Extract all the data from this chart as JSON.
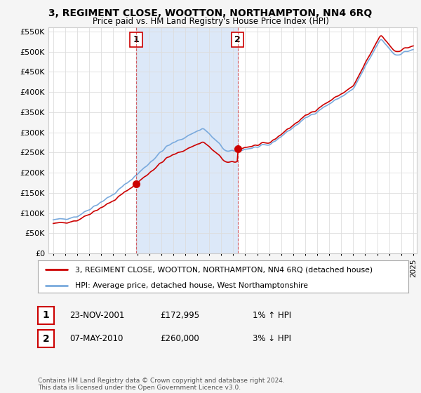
{
  "title": "3, REGIMENT CLOSE, WOOTTON, NORTHAMPTON, NN4 6RQ",
  "subtitle": "Price paid vs. HM Land Registry's House Price Index (HPI)",
  "legend_line1": "3, REGIMENT CLOSE, WOOTTON, NORTHAMPTON, NN4 6RQ (detached house)",
  "legend_line2": "HPI: Average price, detached house, West Northamptonshire",
  "sale1_date": "23-NOV-2001",
  "sale1_price": "£172,995",
  "sale1_hpi": "1% ↑ HPI",
  "sale2_date": "07-MAY-2010",
  "sale2_price": "£260,000",
  "sale2_hpi": "3% ↓ HPI",
  "footer": "Contains HM Land Registry data © Crown copyright and database right 2024.\nThis data is licensed under the Open Government Licence v3.0.",
  "price_color": "#cc0000",
  "hpi_color": "#7aaadd",
  "shade_color": "#dce8f8",
  "vline_color": "#cc0000",
  "background_color": "#f5f5f5",
  "plot_bg_color": "#ffffff",
  "grid_color": "#dddddd",
  "ylim": [
    0,
    560000
  ],
  "yticks": [
    0,
    50000,
    100000,
    150000,
    200000,
    250000,
    300000,
    350000,
    400000,
    450000,
    500000,
    550000
  ],
  "ytick_labels": [
    "£0",
    "£50K",
    "£100K",
    "£150K",
    "£200K",
    "£250K",
    "£300K",
    "£350K",
    "£400K",
    "£450K",
    "£500K",
    "£550K"
  ],
  "xtick_years": [
    1995,
    1996,
    1997,
    1998,
    1999,
    2000,
    2001,
    2002,
    2003,
    2004,
    2005,
    2006,
    2007,
    2008,
    2009,
    2010,
    2011,
    2012,
    2013,
    2014,
    2015,
    2016,
    2017,
    2018,
    2019,
    2020,
    2021,
    2022,
    2023,
    2024,
    2025
  ],
  "sale1_x": 2001.9,
  "sale1_y": 172995,
  "sale2_x": 2010.36,
  "sale2_y": 260000
}
